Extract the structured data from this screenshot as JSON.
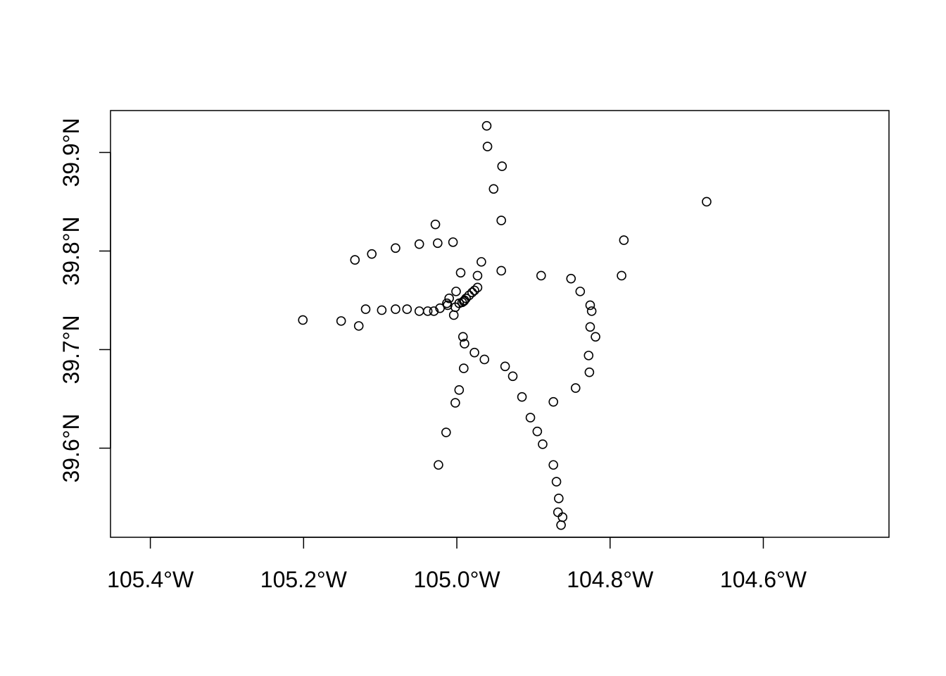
{
  "chart_data": {
    "type": "scatter",
    "title": "",
    "xlabel": "",
    "ylabel": "",
    "xlim": [
      -105.452,
      -104.436
    ],
    "ylim": [
      39.5096,
      39.9425
    ],
    "x_ticks": [
      {
        "value": -105.4,
        "label": "105.4°W"
      },
      {
        "value": -105.2,
        "label": "105.2°W"
      },
      {
        "value": -105.0,
        "label": "105.0°W"
      },
      {
        "value": -104.8,
        "label": "104.8°W"
      },
      {
        "value": -104.6,
        "label": "104.6°W"
      }
    ],
    "y_ticks": [
      {
        "value": 39.6,
        "label": "39.6°N"
      },
      {
        "value": 39.7,
        "label": "39.7°N"
      },
      {
        "value": 39.8,
        "label": "39.8°N"
      },
      {
        "value": 39.9,
        "label": "39.9°N"
      }
    ],
    "grid": false,
    "marker": "open-circle",
    "colors": {
      "marker": "#000000",
      "axis": "#000000",
      "background": "#ffffff"
    },
    "points": [
      {
        "x": -104.961,
        "y": 39.927
      },
      {
        "x": -104.96,
        "y": 39.906
      },
      {
        "x": -104.941,
        "y": 39.886
      },
      {
        "x": -104.952,
        "y": 39.863
      },
      {
        "x": -104.942,
        "y": 39.831
      },
      {
        "x": -104.968,
        "y": 39.789
      },
      {
        "x": -104.942,
        "y": 39.78
      },
      {
        "x": -104.973,
        "y": 39.775
      },
      {
        "x": -104.995,
        "y": 39.778
      },
      {
        "x": -105.005,
        "y": 39.809
      },
      {
        "x": -105.025,
        "y": 39.808
      },
      {
        "x": -105.028,
        "y": 39.827
      },
      {
        "x": -105.049,
        "y": 39.807
      },
      {
        "x": -105.08,
        "y": 39.803
      },
      {
        "x": -105.111,
        "y": 39.797
      },
      {
        "x": -105.133,
        "y": 39.791
      },
      {
        "x": -104.89,
        "y": 39.775
      },
      {
        "x": -104.851,
        "y": 39.772
      },
      {
        "x": -104.839,
        "y": 39.759
      },
      {
        "x": -104.826,
        "y": 39.745
      },
      {
        "x": -104.824,
        "y": 39.739
      },
      {
        "x": -104.826,
        "y": 39.723
      },
      {
        "x": -104.819,
        "y": 39.713
      },
      {
        "x": -104.828,
        "y": 39.694
      },
      {
        "x": -104.827,
        "y": 39.677
      },
      {
        "x": -104.845,
        "y": 39.661
      },
      {
        "x": -104.785,
        "y": 39.775
      },
      {
        "x": -104.782,
        "y": 39.811
      },
      {
        "x": -104.674,
        "y": 39.85
      },
      {
        "x": -104.973,
        "y": 39.763
      },
      {
        "x": -104.977,
        "y": 39.76
      },
      {
        "x": -104.98,
        "y": 39.758
      },
      {
        "x": -104.984,
        "y": 39.755
      },
      {
        "x": -104.988,
        "y": 39.752
      },
      {
        "x": -104.99,
        "y": 39.75
      },
      {
        "x": -104.991,
        "y": 39.749
      },
      {
        "x": -104.993,
        "y": 39.748
      },
      {
        "x": -104.997,
        "y": 39.747
      },
      {
        "x": -105.001,
        "y": 39.759
      },
      {
        "x": -105.01,
        "y": 39.752
      },
      {
        "x": -105.013,
        "y": 39.747
      },
      {
        "x": -105.012,
        "y": 39.745
      },
      {
        "x": -105.002,
        "y": 39.743
      },
      {
        "x": -105.004,
        "y": 39.735
      },
      {
        "x": -105.022,
        "y": 39.742
      },
      {
        "x": -105.03,
        "y": 39.739
      },
      {
        "x": -105.038,
        "y": 39.739
      },
      {
        "x": -105.049,
        "y": 39.739
      },
      {
        "x": -105.065,
        "y": 39.741
      },
      {
        "x": -105.08,
        "y": 39.741
      },
      {
        "x": -105.098,
        "y": 39.74
      },
      {
        "x": -105.119,
        "y": 39.741
      },
      {
        "x": -105.128,
        "y": 39.724
      },
      {
        "x": -105.151,
        "y": 39.729
      },
      {
        "x": -105.201,
        "y": 39.73
      },
      {
        "x": -104.992,
        "y": 39.713
      },
      {
        "x": -104.99,
        "y": 39.706
      },
      {
        "x": -104.977,
        "y": 39.697
      },
      {
        "x": -104.964,
        "y": 39.69
      },
      {
        "x": -104.991,
        "y": 39.681
      },
      {
        "x": -104.997,
        "y": 39.659
      },
      {
        "x": -105.002,
        "y": 39.646
      },
      {
        "x": -105.014,
        "y": 39.616
      },
      {
        "x": -105.024,
        "y": 39.583
      },
      {
        "x": -104.937,
        "y": 39.683
      },
      {
        "x": -104.927,
        "y": 39.673
      },
      {
        "x": -104.915,
        "y": 39.652
      },
      {
        "x": -104.904,
        "y": 39.631
      },
      {
        "x": -104.895,
        "y": 39.617
      },
      {
        "x": -104.888,
        "y": 39.604
      },
      {
        "x": -104.874,
        "y": 39.647
      },
      {
        "x": -104.874,
        "y": 39.583
      },
      {
        "x": -104.87,
        "y": 39.566
      },
      {
        "x": -104.867,
        "y": 39.549
      },
      {
        "x": -104.868,
        "y": 39.535
      },
      {
        "x": -104.862,
        "y": 39.53
      },
      {
        "x": -104.864,
        "y": 39.522
      }
    ]
  }
}
